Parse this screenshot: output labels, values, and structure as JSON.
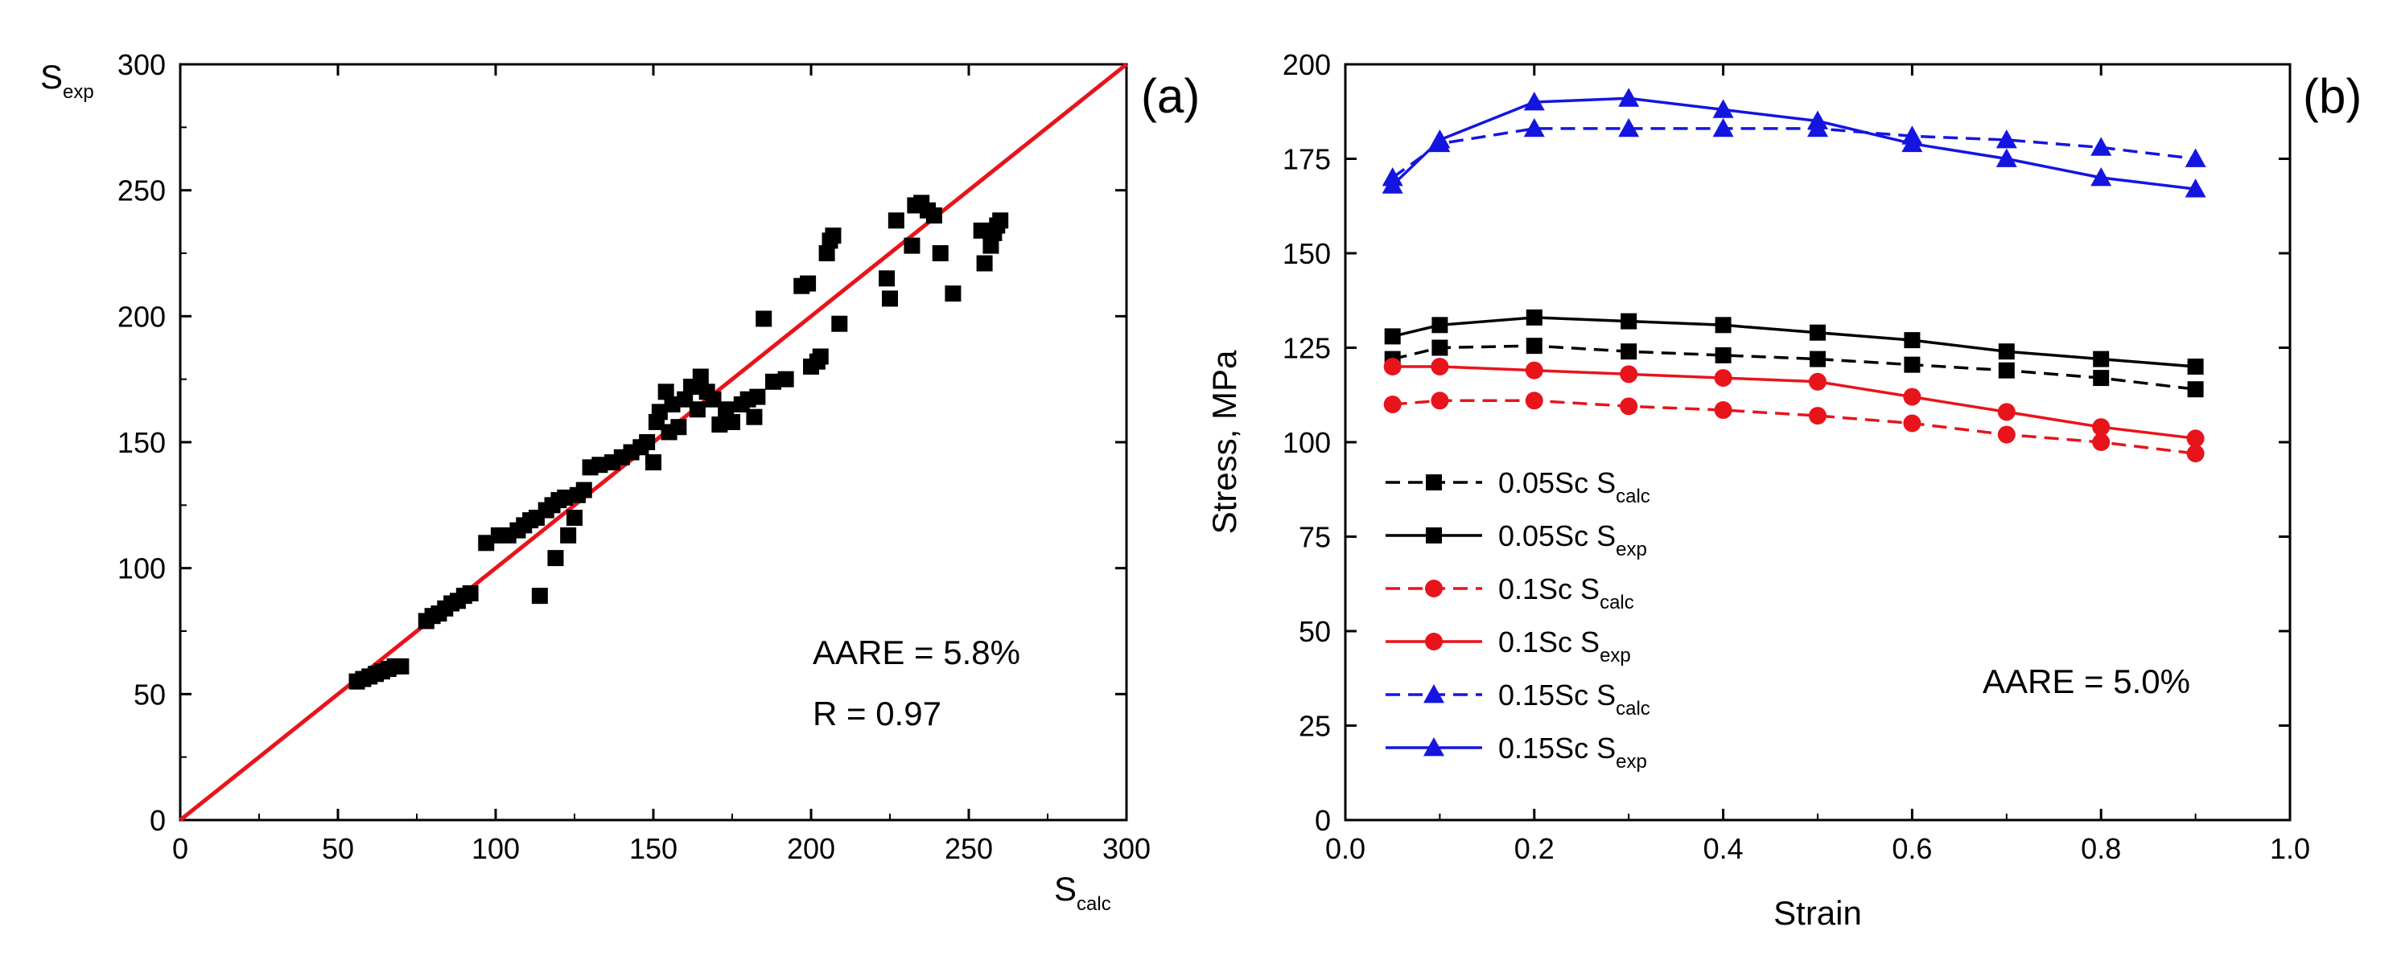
{
  "chart_data": [
    {
      "type": "scatter",
      "panel_label": "(a)",
      "xlabel": "S",
      "xlabel_sub": "calc",
      "ylabel": "S",
      "ylabel_sub": "exp",
      "xlim": [
        0,
        300
      ],
      "ylim": [
        0,
        300
      ],
      "xticks": [
        0,
        50,
        100,
        150,
        200,
        250,
        300
      ],
      "yticks": [
        0,
        50,
        100,
        150,
        200,
        250,
        300
      ],
      "annotations": [
        "AARE = 5.8%",
        "R = 0.97"
      ],
      "reference_line": {
        "x": [
          0,
          300
        ],
        "y": [
          0,
          300
        ],
        "color": "#e8141b"
      },
      "marker_color": "#000000",
      "points": [
        [
          56,
          55
        ],
        [
          58,
          56
        ],
        [
          60,
          57
        ],
        [
          62,
          58
        ],
        [
          64,
          59
        ],
        [
          66,
          60
        ],
        [
          68,
          61
        ],
        [
          70,
          61
        ],
        [
          78,
          79
        ],
        [
          80,
          81
        ],
        [
          82,
          82
        ],
        [
          84,
          84
        ],
        [
          86,
          86
        ],
        [
          88,
          87
        ],
        [
          90,
          89
        ],
        [
          92,
          90
        ],
        [
          97,
          110
        ],
        [
          101,
          113
        ],
        [
          104,
          113
        ],
        [
          107,
          115
        ],
        [
          109,
          117
        ],
        [
          111,
          119
        ],
        [
          113,
          120
        ],
        [
          114,
          89
        ],
        [
          116,
          123
        ],
        [
          118,
          125
        ],
        [
          119,
          104
        ],
        [
          120,
          127
        ],
        [
          122,
          128
        ],
        [
          123,
          113
        ],
        [
          125,
          120
        ],
        [
          126,
          129
        ],
        [
          128,
          131
        ],
        [
          130,
          140
        ],
        [
          133,
          141
        ],
        [
          137,
          142
        ],
        [
          140,
          144
        ],
        [
          143,
          146
        ],
        [
          146,
          148
        ],
        [
          148,
          150
        ],
        [
          150,
          142
        ],
        [
          151,
          158
        ],
        [
          152,
          162
        ],
        [
          154,
          170
        ],
        [
          155,
          154
        ],
        [
          156,
          165
        ],
        [
          158,
          156
        ],
        [
          160,
          167
        ],
        [
          162,
          172
        ],
        [
          164,
          163
        ],
        [
          165,
          176
        ],
        [
          167,
          170
        ],
        [
          169,
          167
        ],
        [
          171,
          157
        ],
        [
          173,
          163
        ],
        [
          175,
          158
        ],
        [
          178,
          165
        ],
        [
          180,
          167
        ],
        [
          182,
          160
        ],
        [
          183,
          168
        ],
        [
          185,
          199
        ],
        [
          188,
          174
        ],
        [
          192,
          175
        ],
        [
          197,
          212
        ],
        [
          199,
          213
        ],
        [
          200,
          180
        ],
        [
          202,
          182
        ],
        [
          203,
          184
        ],
        [
          205,
          225
        ],
        [
          206,
          230
        ],
        [
          207,
          232
        ],
        [
          209,
          197
        ],
        [
          224,
          215
        ],
        [
          225,
          207
        ],
        [
          227,
          238
        ],
        [
          232,
          228
        ],
        [
          233,
          244
        ],
        [
          235,
          245
        ],
        [
          237,
          242
        ],
        [
          239,
          240
        ],
        [
          241,
          225
        ],
        [
          245,
          209
        ],
        [
          254,
          234
        ],
        [
          255,
          221
        ],
        [
          257,
          228
        ],
        [
          258,
          233
        ],
        [
          259,
          236
        ],
        [
          260,
          238
        ]
      ]
    },
    {
      "type": "line",
      "panel_label": "(b)",
      "xlabel": "Strain",
      "ylabel": "Stress, MPa",
      "xlim": [
        0.0,
        1.0
      ],
      "ylim": [
        0,
        200
      ],
      "xticks": [
        "0.0",
        "0.2",
        "0.4",
        "0.6",
        "0.8",
        "1.0"
      ],
      "yticks": [
        0,
        25,
        50,
        75,
        100,
        125,
        150,
        175,
        200
      ],
      "annotation": "AARE = 5.0%",
      "legend_position": "left-center",
      "x": [
        0.05,
        0.1,
        0.2,
        0.3,
        0.4,
        0.5,
        0.6,
        0.7,
        0.8,
        0.9
      ],
      "series": [
        {
          "name": "0.05Sc S",
          "sub": "calc",
          "color": "#000000",
          "marker": "square",
          "dashed": true,
          "values": [
            122,
            125,
            125.5,
            124,
            123,
            122,
            120.5,
            119,
            117,
            114
          ]
        },
        {
          "name": "0.05Sc S",
          "sub": "exp",
          "color": "#000000",
          "marker": "square",
          "dashed": false,
          "values": [
            128,
            131,
            133,
            132,
            131,
            129,
            127,
            124,
            122,
            120
          ]
        },
        {
          "name": "0.1Sc S",
          "sub": "calc",
          "color": "#e8141b",
          "marker": "circle",
          "dashed": true,
          "values": [
            110,
            111,
            111,
            109.5,
            108.5,
            107,
            105,
            102,
            100,
            97
          ]
        },
        {
          "name": "0.1Sc S",
          "sub": "exp",
          "color": "#e8141b",
          "marker": "circle",
          "dashed": false,
          "values": [
            120,
            120,
            119,
            118,
            117,
            116,
            112,
            108,
            104,
            101
          ]
        },
        {
          "name": "0.15Sc S",
          "sub": "calc",
          "color": "#1515e0",
          "marker": "triangle",
          "dashed": true,
          "values": [
            170,
            179,
            183,
            183,
            183,
            183,
            181,
            180,
            178,
            175
          ]
        },
        {
          "name": "0.15Sc S",
          "sub": "exp",
          "color": "#1515e0",
          "marker": "triangle",
          "dashed": false,
          "values": [
            168,
            180,
            190,
            191,
            188,
            185,
            179,
            175,
            170,
            167
          ]
        }
      ]
    }
  ]
}
